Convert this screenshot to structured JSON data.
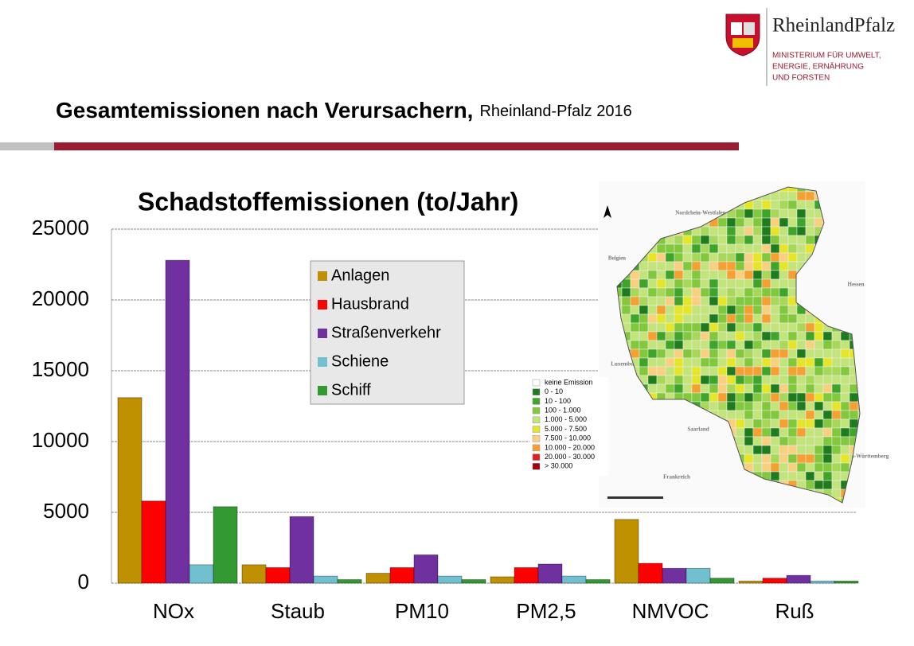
{
  "header": {
    "title": "Gesamtemissionen nach Verursachern,",
    "subtitle": "Rheinland-Pfalz 2016"
  },
  "logo": {
    "name": "RheinlandPfalz",
    "ministry": [
      "MINISTERIUM FÜR UMWELT,",
      "ENERGIE, ERNÄHRUNG",
      "UND FORSTEN"
    ]
  },
  "chart_data": {
    "type": "bar",
    "title": "Schadstoffemissionen (to/Jahr)",
    "categories": [
      "NOx",
      "Staub",
      "PM10",
      "PM2,5",
      "NMVOC",
      "Ruß"
    ],
    "series": [
      {
        "name": "Anlagen",
        "color": "#bf9000",
        "values": [
          13100,
          1300,
          700,
          450,
          4500,
          150
        ]
      },
      {
        "name": "Hausbrand",
        "color": "#ff0000",
        "values": [
          5800,
          1100,
          1100,
          1100,
          1400,
          350
        ]
      },
      {
        "name": "Straßenverkehr",
        "color": "#7030a0",
        "values": [
          22800,
          4700,
          2000,
          1350,
          1050,
          550
        ]
      },
      {
        "name": "Schiene",
        "color": "#70c0d0",
        "values": [
          1300,
          500,
          500,
          500,
          1050,
          150
        ]
      },
      {
        "name": "Schiff",
        "color": "#339933",
        "values": [
          5400,
          250,
          250,
          250,
          350,
          150
        ]
      }
    ],
    "ylim": [
      0,
      25000
    ],
    "yticks": [
      0,
      5000,
      10000,
      15000,
      20000,
      25000
    ],
    "grid": true,
    "legend": "inside top"
  },
  "map": {
    "regions": [
      "Nordrhein-Westfalen",
      "Belgien",
      "Hessen",
      "Luxemburg",
      "Saarland",
      "Frankreich",
      "Baden-Württemberg"
    ],
    "legend": [
      {
        "label": "keine Emission",
        "color": "#ffffff"
      },
      {
        "label": "0 -     10",
        "color": "#1e7b1e"
      },
      {
        "label": "10 -    100",
        "color": "#3ea52a"
      },
      {
        "label": "100 - 1.000",
        "color": "#82c83c"
      },
      {
        "label": "1.000 - 5.000",
        "color": "#c2e47a"
      },
      {
        "label": "5.000 - 7.500",
        "color": "#e6e628"
      },
      {
        "label": "7.500 - 10.000",
        "color": "#f8d080"
      },
      {
        "label": "10.000 - 20.000",
        "color": "#f5a030"
      },
      {
        "label": "20.000 - 30.000",
        "color": "#e02020"
      },
      {
        "label": "> 30.000",
        "color": "#a00010"
      }
    ]
  }
}
